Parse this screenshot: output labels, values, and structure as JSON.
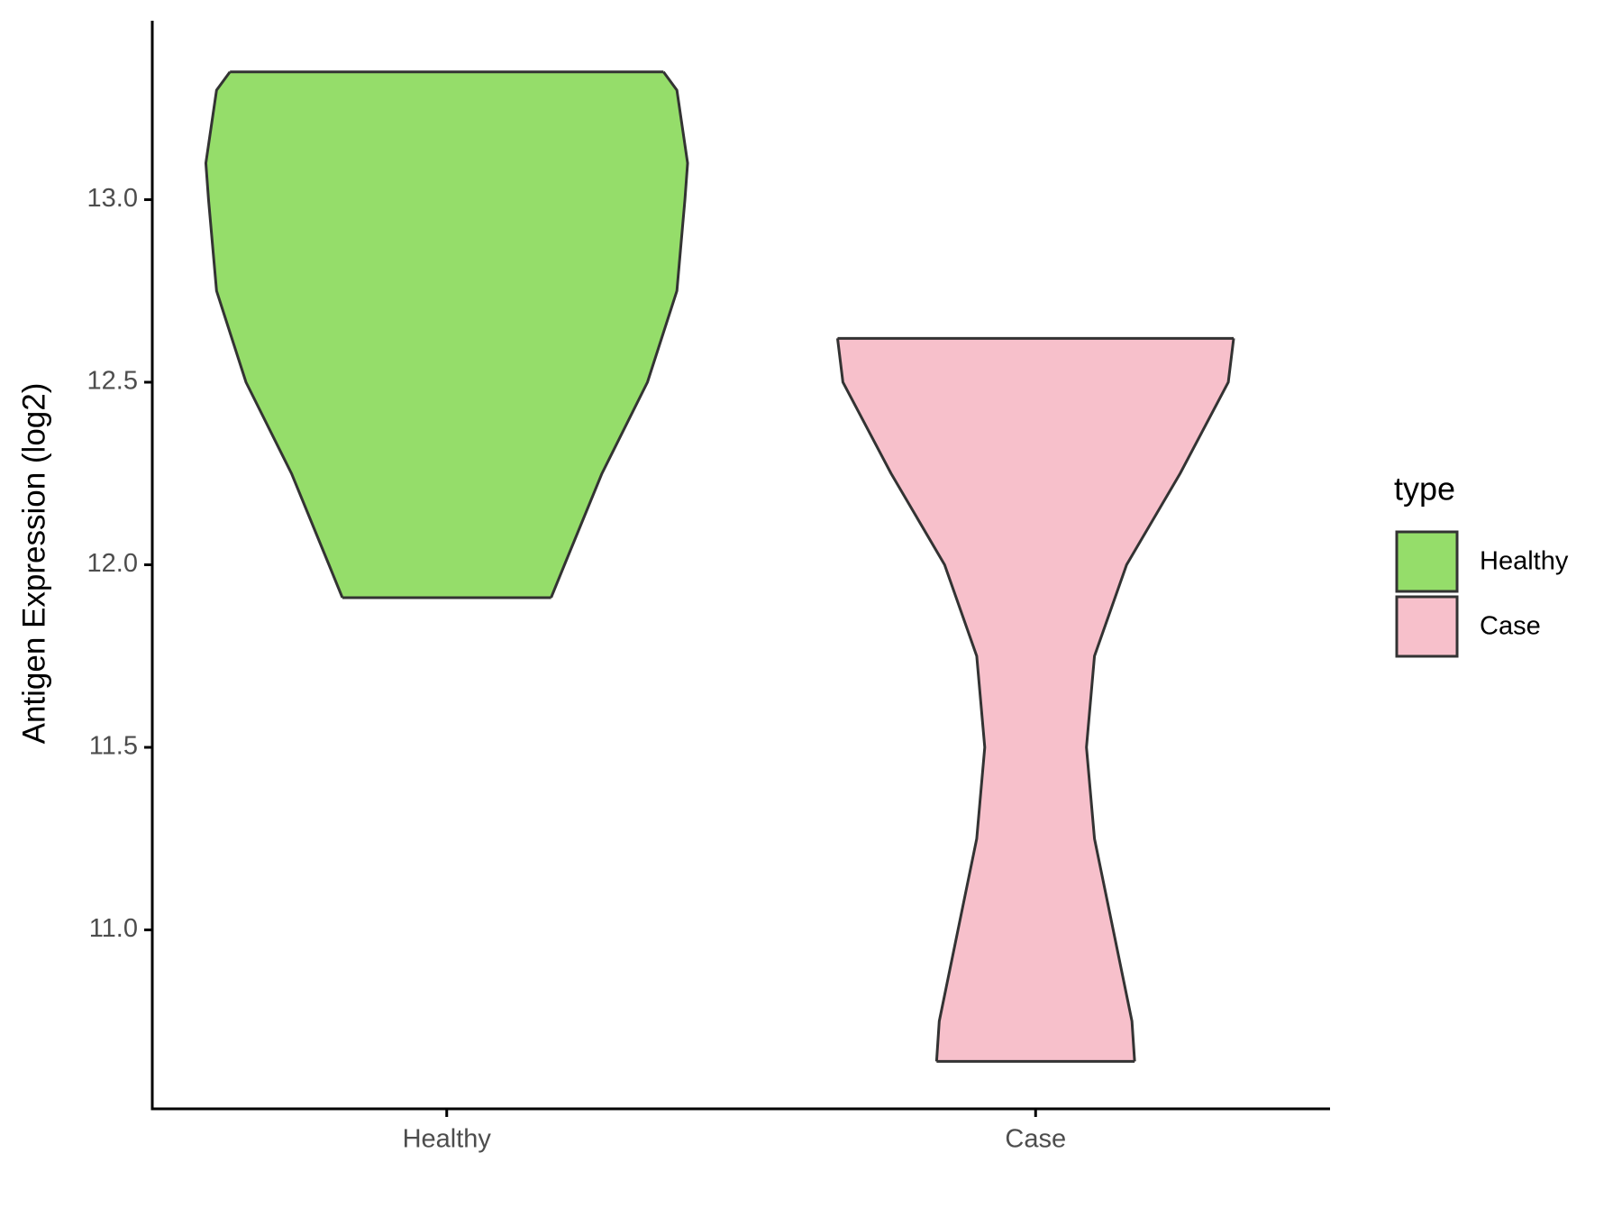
{
  "chart_data": {
    "type": "violin",
    "y_label": "Antigen Expression (log2)",
    "categories": [
      "Healthy",
      "Case"
    ],
    "legend_title": "type",
    "legend_position": "right",
    "ylim": [
      10.51,
      13.49
    ],
    "yticks": [
      {
        "value": 11,
        "label": "11.0"
      },
      11.5,
      {
        "value": 12,
        "label": "12.0"
      },
      12.5,
      {
        "value": 13,
        "label": "13.0"
      }
    ],
    "series": [
      {
        "name": "Healthy",
        "color": "#95dd6a",
        "y": [
          11.91,
          12.0,
          12.25,
          12.5,
          12.75,
          13.0,
          13.1,
          13.2,
          13.3,
          13.35
        ],
        "density": [
          0.39,
          0.44,
          0.58,
          0.75,
          0.86,
          0.89,
          0.9,
          0.88,
          0.86,
          0.81
        ]
      },
      {
        "name": "Case",
        "color": "#f7c0cb",
        "y": [
          10.64,
          10.75,
          11.0,
          11.25,
          11.5,
          11.75,
          12.0,
          12.25,
          12.5,
          12.62
        ],
        "density": [
          0.37,
          0.36,
          0.29,
          0.22,
          0.19,
          0.22,
          0.34,
          0.54,
          0.72,
          0.74
        ]
      }
    ]
  }
}
